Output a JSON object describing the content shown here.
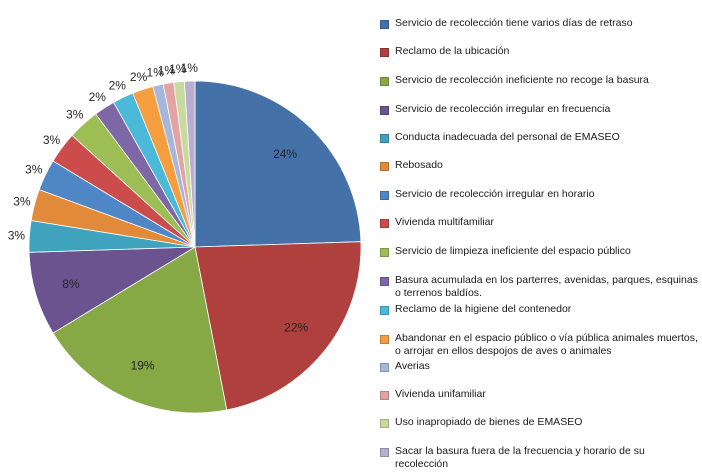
{
  "chart_data": {
    "type": "pie",
    "title": "",
    "slices": [
      {
        "label": "Servicio de recolección tiene varios días de retraso",
        "value": 24,
        "display": "24%",
        "color": "#4472A8"
      },
      {
        "label": "Reclamo de la ubicación",
        "value": 22,
        "display": "22%",
        "color": "#B0403D"
      },
      {
        "label": "Servicio de recolección ineficiente no recoge la basura",
        "value": 19,
        "display": "19%",
        "color": "#86A845"
      },
      {
        "label": "Servicio de recolección irregular en frecuencia",
        "value": 8,
        "display": "8%",
        "color": "#6B5390"
      },
      {
        "label": "Conducta inadecuada del personal de EMASEO",
        "value": 3,
        "display": "3%",
        "color": "#3FA3BD"
      },
      {
        "label": "Rebosado",
        "value": 3,
        "display": "3%",
        "color": "#E08A3A"
      },
      {
        "label": "Servicio de recolección irregular en horario",
        "value": 3,
        "display": "3%",
        "color": "#4F86C6"
      },
      {
        "label": "Vivienda multifamiliar",
        "value": 3,
        "display": "3%",
        "color": "#CB4C4A"
      },
      {
        "label": "Servicio de limpieza ineficiente del espacio público",
        "value": 3,
        "display": "3%",
        "color": "#9DBE55"
      },
      {
        "label": "Basura acumulada en los parterres, avenidas, parques, esquinas o terrenos baldíos.",
        "value": 2,
        "display": "2%",
        "color": "#7D67A7"
      },
      {
        "label": "Reclamo de la higiene del contenedor",
        "value": 2,
        "display": "2%",
        "color": "#4BBAD8"
      },
      {
        "label": "Abandonar en el espacio público o vía pública animales muertos, o arrojar en ellos despojos de aves o animales",
        "value": 2,
        "display": "2%",
        "color": "#F59D3F"
      },
      {
        "label": "Averias",
        "value": 1,
        "display": "1%",
        "color": "#A5B8DC"
      },
      {
        "label": "Vivienda unifamiliar",
        "value": 1,
        "display": "1%",
        "color": "#E3A3A2"
      },
      {
        "label": "Uso inapropiado de bienes de EMASEO",
        "value": 1,
        "display": "1%",
        "color": "#C8DB9E"
      },
      {
        "label": "Sacar la basura fuera de la frecuencia y horario de su recolección",
        "value": 1,
        "display": "1%",
        "color": "#B8AED0"
      }
    ],
    "legend_position": "right",
    "start_angle": "12 o'clock",
    "direction": "clockwise"
  }
}
